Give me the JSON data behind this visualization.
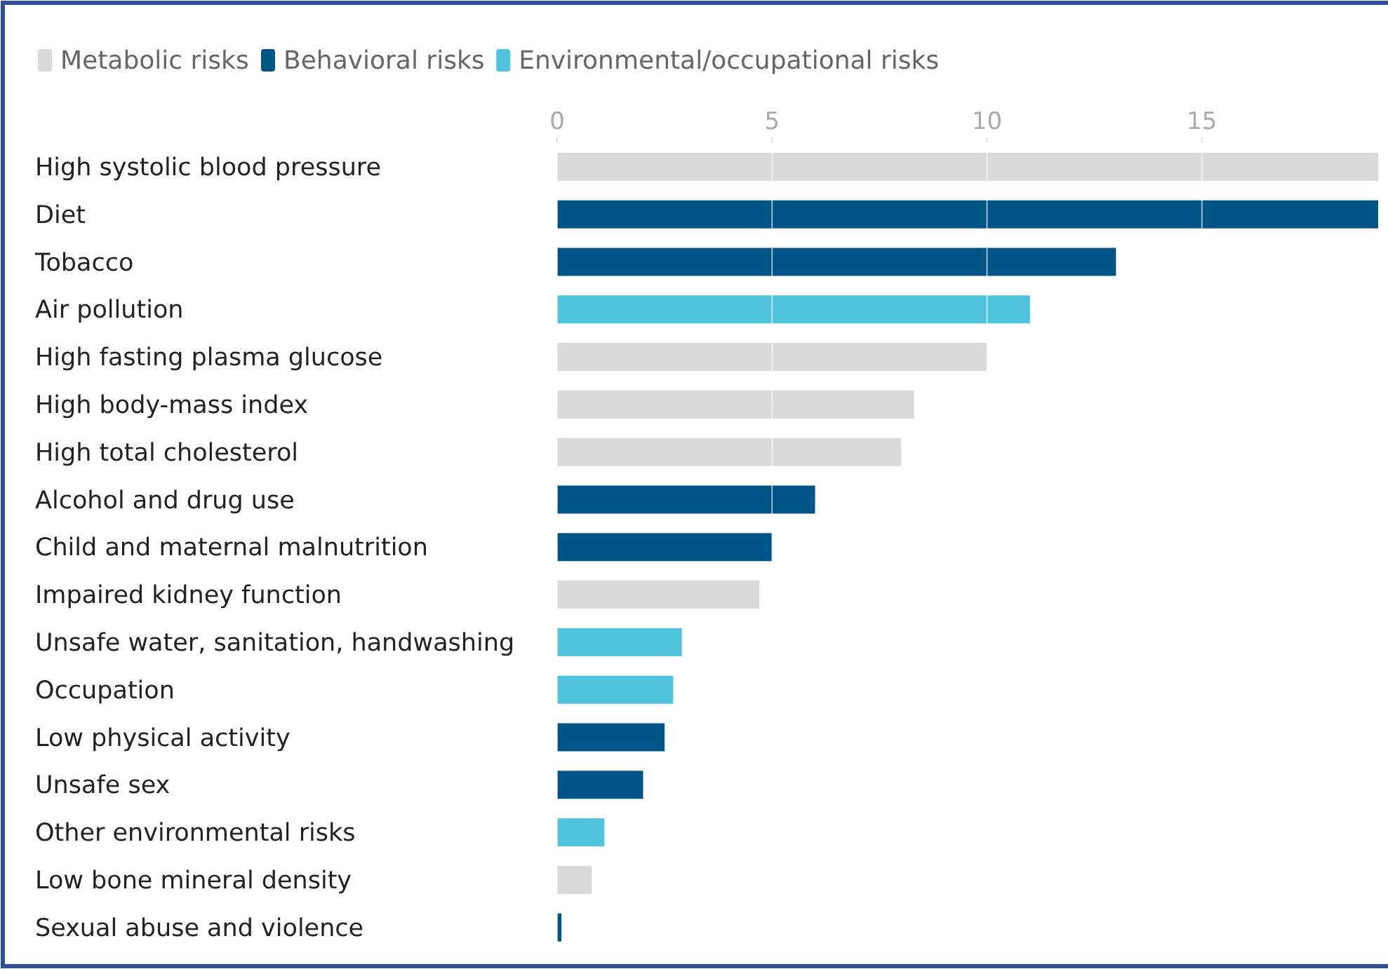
{
  "chart_data": {
    "type": "bar",
    "orientation": "horizontal",
    "categories": [
      "High systolic blood pressure",
      "Diet",
      "Tobacco",
      "Air pollution",
      "High fasting plasma glucose",
      "High body-mass index",
      "High total cholesterol",
      "Alcohol and drug use",
      "Child and maternal malnutrition",
      "Impaired kidney function",
      "Unsafe water, sanitation, handwashing",
      "Occupation",
      "Low physical activity",
      "Unsafe sex",
      "Other environmental risks",
      "Low bone mineral density",
      "Sexual abuse and violence"
    ],
    "series": [
      {
        "name": "Metabolic risks",
        "color": "#d9d9d9",
        "values": [
          19.1,
          null,
          null,
          null,
          10.0,
          8.3,
          8.0,
          null,
          null,
          4.7,
          null,
          null,
          null,
          null,
          null,
          0.8,
          null
        ]
      },
      {
        "name": "Behavioral risks",
        "color": "#005587",
        "values": [
          null,
          19.1,
          13.0,
          null,
          null,
          null,
          null,
          6.0,
          5.0,
          null,
          null,
          null,
          2.5,
          2.0,
          null,
          null,
          0.1
        ]
      },
      {
        "name": "Environmental/occupational risks",
        "color": "#4fc4dc",
        "values": [
          null,
          null,
          null,
          11.0,
          null,
          null,
          null,
          null,
          null,
          null,
          2.9,
          2.7,
          null,
          null,
          1.1,
          null,
          null
        ]
      }
    ],
    "xlim": [
      0,
      19.1
    ],
    "xticks": [
      0,
      5,
      10,
      15
    ],
    "grid": "x",
    "legend": "top left"
  }
}
